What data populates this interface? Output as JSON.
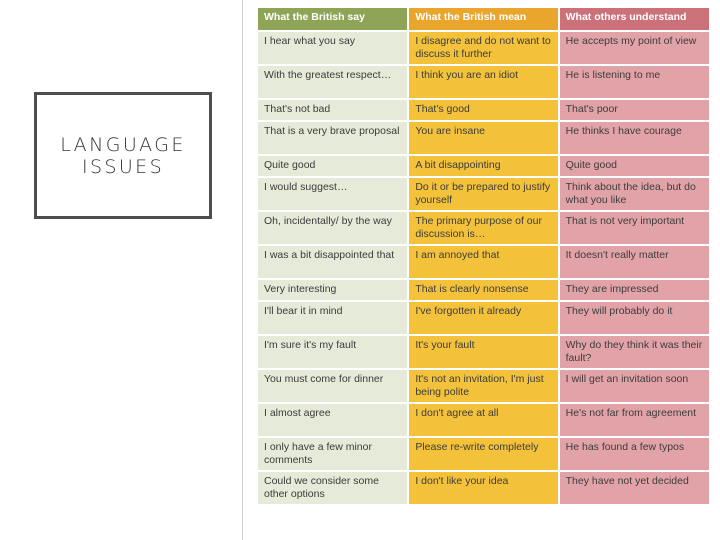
{
  "slide": {
    "title_line1": "LANGUAGE",
    "title_line2": "ISSUES"
  },
  "colors": {
    "col1_header": "#8ea558",
    "col2_header": "#eaa52c",
    "col3_header": "#cc7079",
    "col1_cell": "#e6ead8",
    "col2_cell": "#f3c23a",
    "col3_cell": "#e2a3a8"
  },
  "table": {
    "headers": [
      "What the British say",
      "What the British mean",
      "What others understand"
    ],
    "rows": [
      [
        "I hear what you say",
        "I disagree and do not want to discuss it further",
        "He accepts my point of view"
      ],
      [
        "With the greatest respect…",
        "I think you are an idiot",
        "He is listening to me"
      ],
      [
        "That's not bad",
        "That's good",
        "That's poor"
      ],
      [
        "That is a very brave proposal",
        "You are insane",
        "He thinks I have courage"
      ],
      [
        "Quite good",
        "A bit disappointing",
        "Quite good"
      ],
      [
        "I would suggest…",
        "Do it or be prepared to justify yourself",
        "Think about the idea, but do what you like"
      ],
      [
        "Oh, incidentally/ by the way",
        "The primary purpose of our discussion is…",
        "That is not very important"
      ],
      [
        "I was a bit disappointed that",
        "I am annoyed that",
        "It doesn't really matter"
      ],
      [
        "Very interesting",
        "That is clearly nonsense",
        "They are impressed"
      ],
      [
        "I'll bear it in mind",
        "I've forgotten it already",
        "They will probably do it"
      ],
      [
        "I'm sure it's my fault",
        "It's your fault",
        "Why do they think it was their fault?"
      ],
      [
        "You must come for dinner",
        "It's not an invitation, I'm just being polite",
        "I will get an invitation soon"
      ],
      [
        "I almost agree",
        "I don't agree at all",
        "He's not far from agreement"
      ],
      [
        "I only have a few minor comments",
        "Please re-write completely",
        "He has found a few typos"
      ],
      [
        "Could we consider some other options",
        "I don't like your idea",
        "They have not yet decided"
      ]
    ]
  }
}
